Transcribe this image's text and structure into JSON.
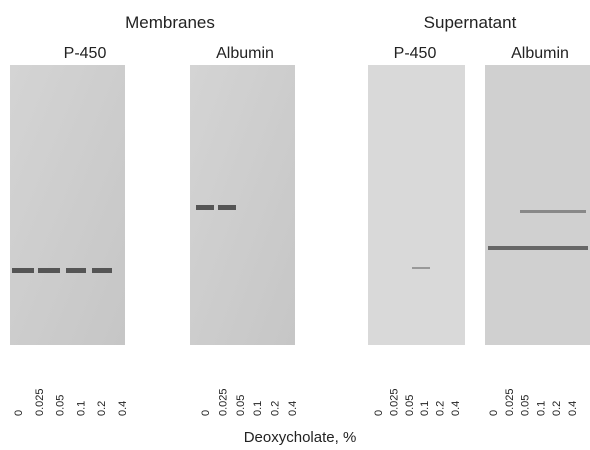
{
  "groups": [
    {
      "title": "Membranes",
      "panels": [
        {
          "label": "P-450",
          "lanes": [
            "0",
            "0.025",
            "0.05",
            "0.1",
            "0.2",
            "0.4"
          ]
        },
        {
          "label": "Albumin",
          "lanes": [
            "0",
            "0.025",
            "0.05",
            "0.1",
            "0.2",
            "0.4"
          ]
        }
      ]
    },
    {
      "title": "Supernatant",
      "panels": [
        {
          "label": "P-450",
          "lanes": [
            "0",
            "0.025",
            "0.05",
            "0.1",
            "0.2",
            "0.4"
          ]
        },
        {
          "label": "Albumin",
          "lanes": [
            "0",
            "0.025",
            "0.05",
            "0.1",
            "0.2",
            "0.4"
          ]
        }
      ]
    }
  ],
  "x_label": "Deoxycholate, %"
}
